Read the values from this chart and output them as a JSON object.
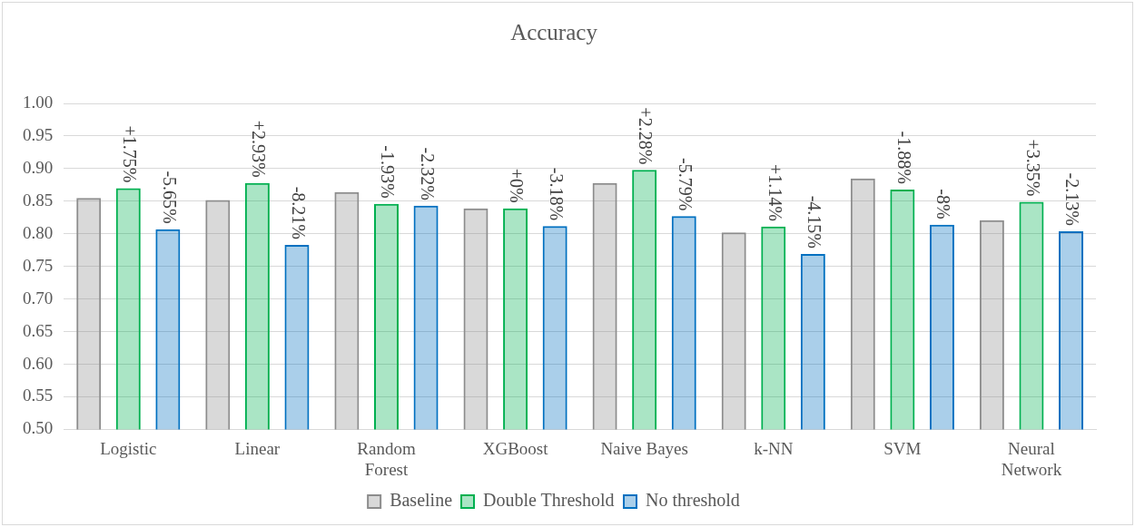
{
  "chart_data": {
    "type": "bar",
    "title": "Accuracy",
    "categories": [
      "Logistic",
      "Linear",
      "Random Forest",
      "XGBoost",
      "Naive Bayes",
      "k-NN",
      "SVM",
      "Neural Network"
    ],
    "series": [
      {
        "name": "Baseline",
        "color": "#8c8c8c",
        "values": [
          0.855,
          0.852,
          0.864,
          0.839,
          0.878,
          0.802,
          0.885,
          0.821
        ]
      },
      {
        "name": "Double Threshold",
        "color": "#00b050",
        "values": [
          0.87,
          0.878,
          0.846,
          0.839,
          0.898,
          0.811,
          0.868,
          0.849
        ]
      },
      {
        "name": "No threshold",
        "color": "#0070c0",
        "values": [
          0.807,
          0.783,
          0.843,
          0.812,
          0.827,
          0.769,
          0.814,
          0.804
        ]
      }
    ],
    "annotations": [
      {
        "text": "+1.75%",
        "x": "Logistic",
        "y": 0.87
      },
      "-5.65%",
      {
        "text": "+2.93%",
        "x": "Linear",
        "y": 0.878
      },
      "-8.21%",
      {
        "text": "-1.93%",
        "x": "Random Forest",
        "y": 0.846
      },
      "-2.32%",
      {
        "text": "+0%",
        "x": "XGBoost",
        "y": 0.839
      },
      "-3.18%",
      {
        "text": "+2.28%",
        "x": "Naive Bayes",
        "y": 0.898
      },
      "-5.79%",
      {
        "text": "+1.14%",
        "x": "k-NN",
        "y": 0.811
      },
      "-4.15%",
      {
        "text": "-1.88%",
        "x": "SVM",
        "y": 0.868
      },
      "-8%",
      {
        "text": "+3.35%",
        "x": "Neural Network",
        "y": 0.849
      },
      "-2.13%"
    ],
    "ylim": [
      0.5,
      1.0
    ],
    "yticks": [
      {
        "value": 0.5,
        "label": "0.50"
      },
      0.55,
      {
        "value": 0.6,
        "label": "0.60"
      },
      0.65,
      {
        "value": 0.7,
        "label": "0.70"
      },
      0.75,
      {
        "value": 0.8,
        "label": "0.80"
      },
      0.85,
      {
        "value": 0.9,
        "label": "0.90"
      },
      0.95,
      {
        "value": 1.0,
        "label": "1.00"
      }
    ],
    "grid": "y",
    "legend": "bottom"
  }
}
